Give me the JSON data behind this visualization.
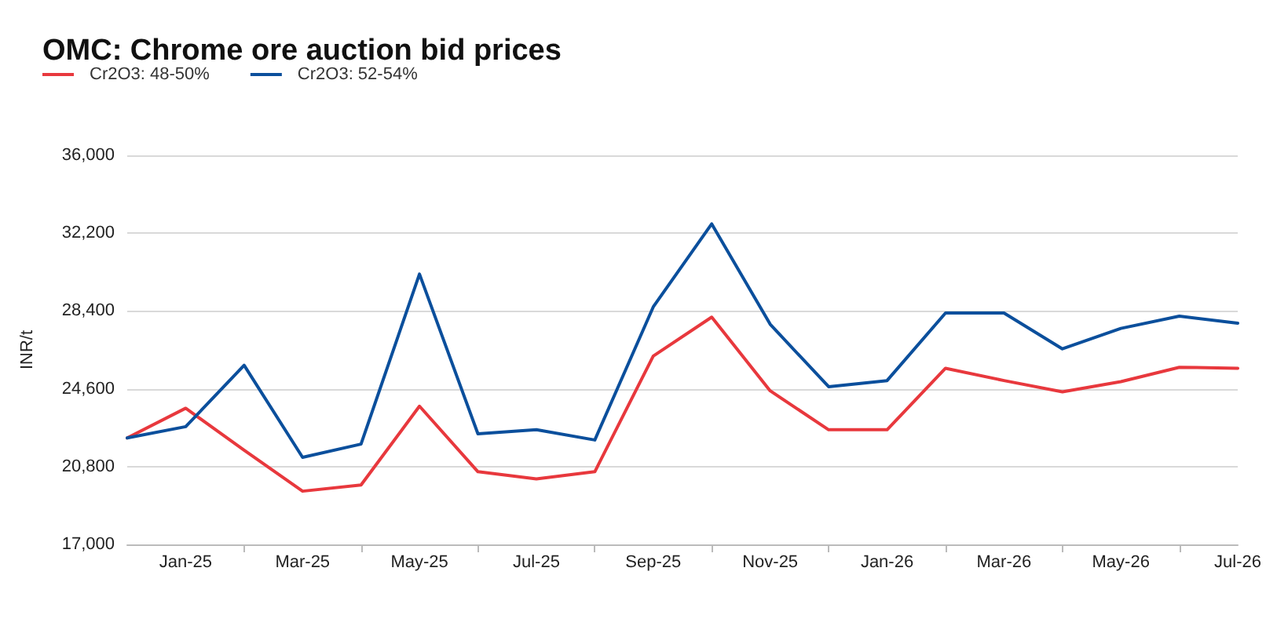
{
  "chart_data": {
    "type": "line",
    "title": "OMC: Chrome ore auction bid prices",
    "ylabel": "INR/t",
    "categories": [
      null,
      "Jan-25",
      null,
      "Mar-25",
      null,
      "May-25",
      null,
      "Jul-25",
      null,
      "Sep-25",
      null,
      "Nov-25",
      null,
      "Jan-26",
      null,
      "Mar-26",
      null,
      "May-26",
      null,
      "Jul-26"
    ],
    "series": [
      {
        "name": "Cr2O3: 48-50%",
        "color": "#e8383d",
        "values": [
          22200,
          23650,
          21600,
          19600,
          19900,
          23750,
          20550,
          20200,
          20550,
          26200,
          28100,
          24500,
          22600,
          22600,
          25600,
          25000,
          24450,
          24950,
          25650,
          25600
        ]
      },
      {
        "name": "Cr2O3: 52-54%",
        "color": "#0b4f9c",
        "values": [
          22200,
          22750,
          25750,
          21250,
          21900,
          30200,
          22400,
          22600,
          22100,
          28600,
          32650,
          27750,
          24700,
          25000,
          28300,
          28300,
          26550,
          27550,
          28150,
          27800
        ]
      }
    ],
    "ylim": [
      17000,
      36000
    ],
    "yticks": [
      {
        "value": 17000,
        "label": "17,000"
      },
      {
        "value": 20800,
        "label": "20,800"
      },
      {
        "value": 24600,
        "label": "24,600"
      },
      {
        "value": 28400,
        "label": "28,400"
      },
      {
        "value": 32200,
        "label": "32,200"
      },
      {
        "value": 36000,
        "label": "36,000"
      }
    ],
    "grid": "y",
    "legend": "top left",
    "marker": "none"
  }
}
